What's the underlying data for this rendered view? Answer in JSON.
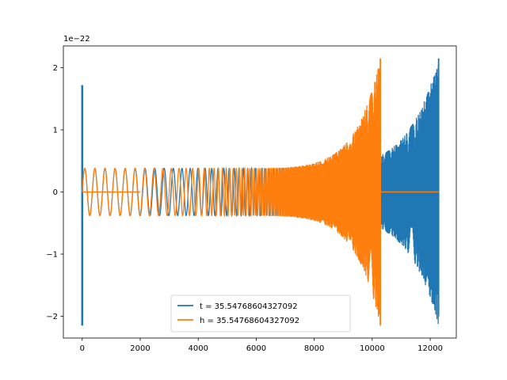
{
  "chart_data": {
    "type": "line",
    "title": "",
    "xlabel": "",
    "ylabel": "",
    "xlim": [
      -650,
      12900
    ],
    "ylim": [
      -2.35,
      2.35
    ],
    "y_offset_label": "1e−22",
    "x_ticks": [
      0,
      2000,
      4000,
      6000,
      8000,
      10000,
      12000
    ],
    "x_tick_labels": [
      "0",
      "2000",
      "4000",
      "6000",
      "8000",
      "10000",
      "12000"
    ],
    "y_ticks": [
      -2,
      -1,
      0,
      1,
      2
    ],
    "y_tick_labels": [
      "−2",
      "−1",
      "0",
      "1",
      "2"
    ],
    "grid": false,
    "legend_position": "bottom-center",
    "series": [
      {
        "name": "t = 35.54768604327092",
        "color": "#1f77b4",
        "x_start": 0,
        "x_end": 12290,
        "y_start_amplitude": 0.38,
        "y_end_amplitude": 2.15,
        "peak": {
          "x": 12290,
          "y_max": 2.15,
          "y_min": -2.0
        },
        "initial_spike": {
          "x": 0,
          "y_max": 1.72,
          "y_min": -2.15
        }
      },
      {
        "name": "h = 35.54768604327092",
        "color": "#ff7f0e",
        "x_start": 0,
        "x_end": 10280,
        "y_start_amplitude": 0.38,
        "y_end_amplitude": 2.15,
        "peak": {
          "x": 10280,
          "y_max": 2.15,
          "y_min": -2.15
        },
        "flat_segments": [
          [
            0,
            2000
          ],
          [
            10300,
            12290
          ]
        ]
      }
    ]
  }
}
